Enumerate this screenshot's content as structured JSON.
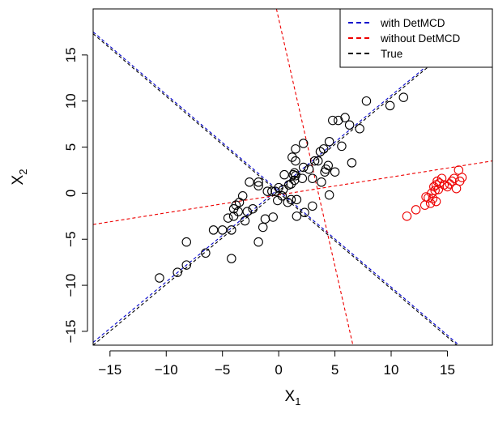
{
  "chart_data": {
    "type": "scatter",
    "title": "",
    "xlabel": {
      "base": "X",
      "sub": "1"
    },
    "ylabel": {
      "base": "X",
      "sub": "2"
    },
    "xlim": [
      -16.5,
      19
    ],
    "ylim": [
      -16.5,
      20
    ],
    "xticks": [
      -15,
      -10,
      -5,
      0,
      5,
      10,
      15
    ],
    "yticks": [
      -15,
      -10,
      -5,
      0,
      5,
      10,
      15
    ],
    "xtick_labels": [
      "−15",
      "−10",
      "−5",
      "0",
      "5",
      "10",
      "15"
    ],
    "ytick_labels": [
      "−15",
      "−10",
      "−5",
      "0",
      "5",
      "10",
      "15"
    ],
    "grid": false,
    "legend_position": "top-right",
    "legend": [
      {
        "label": "with DetMCD",
        "color": "#0000cc",
        "style": "dashed"
      },
      {
        "label": "without DetMCD",
        "color": "#ee0000",
        "style": "dashed"
      },
      {
        "label": "True",
        "color": "#000000",
        "style": "dashed"
      }
    ],
    "series": [
      {
        "marker": "open-circle",
        "color": "#000000",
        "points": [
          [
            -10.6,
            -9.2
          ],
          [
            -9.0,
            -8.6
          ],
          [
            -8.2,
            -7.8
          ],
          [
            -8.2,
            -5.3
          ],
          [
            -6.5,
            -6.5
          ],
          [
            -5.8,
            -4.0
          ],
          [
            -5.0,
            -4.0
          ],
          [
            -4.5,
            -2.7
          ],
          [
            -4.2,
            -4.0
          ],
          [
            -4.2,
            -7.1
          ],
          [
            -4.0,
            -1.7
          ],
          [
            -4.0,
            -2.5
          ],
          [
            -3.8,
            -1.3
          ],
          [
            -3.6,
            -2.0
          ],
          [
            -3.5,
            -1.0
          ],
          [
            -3.2,
            -0.3
          ],
          [
            -3.0,
            -3.0
          ],
          [
            -2.8,
            -2.0
          ],
          [
            -2.6,
            1.2
          ],
          [
            -2.3,
            -1.7
          ],
          [
            -1.8,
            1.2
          ],
          [
            -1.8,
            0.8
          ],
          [
            -1.8,
            -5.3
          ],
          [
            -1.4,
            -3.7
          ],
          [
            -1.2,
            -2.8
          ],
          [
            -1.0,
            0.2
          ],
          [
            -0.6,
            0.2
          ],
          [
            -0.5,
            -2.6
          ],
          [
            -0.3,
            0.2
          ],
          [
            -0.1,
            -0.8
          ],
          [
            0.3,
            -0.3
          ],
          [
            0.0,
            0.6
          ],
          [
            0.4,
            0.4
          ],
          [
            0.5,
            2.0
          ],
          [
            0.8,
            -1.0
          ],
          [
            0.9,
            0.9
          ],
          [
            1.1,
            1.0
          ],
          [
            1.1,
            -0.7
          ],
          [
            1.2,
            3.9
          ],
          [
            1.3,
            2.0
          ],
          [
            1.4,
            1.4
          ],
          [
            1.4,
            2.2
          ],
          [
            1.5,
            3.5
          ],
          [
            1.5,
            4.8
          ],
          [
            1.5,
            1.9
          ],
          [
            1.6,
            -0.7
          ],
          [
            1.6,
            -2.5
          ],
          [
            2.1,
            1.6
          ],
          [
            2.2,
            2.8
          ],
          [
            2.2,
            5.4
          ],
          [
            2.3,
            -2.1
          ],
          [
            2.7,
            2.6
          ],
          [
            3.0,
            1.6
          ],
          [
            3.0,
            -1.4
          ],
          [
            3.2,
            3.5
          ],
          [
            3.5,
            3.5
          ],
          [
            3.7,
            4.5
          ],
          [
            3.8,
            1.2
          ],
          [
            4.0,
            4.8
          ],
          [
            4.1,
            2.3
          ],
          [
            4.2,
            2.6
          ],
          [
            4.4,
            3.0
          ],
          [
            4.5,
            -0.2
          ],
          [
            4.5,
            5.6
          ],
          [
            4.8,
            7.9
          ],
          [
            5.0,
            2.3
          ],
          [
            5.3,
            7.9
          ],
          [
            5.6,
            5.1
          ],
          [
            5.9,
            8.2
          ],
          [
            6.3,
            7.4
          ],
          [
            6.5,
            3.3
          ],
          [
            7.2,
            7.0
          ],
          [
            7.8,
            10.0
          ],
          [
            9.9,
            9.5
          ],
          [
            11.1,
            10.4
          ]
        ]
      },
      {
        "marker": "open-circle",
        "color": "#ee0000",
        "points": [
          [
            11.4,
            -2.5
          ],
          [
            12.2,
            -1.8
          ],
          [
            13.0,
            -1.3
          ],
          [
            13.1,
            -0.4
          ],
          [
            13.3,
            -0.5
          ],
          [
            13.5,
            -1.1
          ],
          [
            13.6,
            0.0
          ],
          [
            13.7,
            -0.6
          ],
          [
            13.8,
            0.7
          ],
          [
            13.9,
            0.3
          ],
          [
            14.0,
            0.9
          ],
          [
            14.1,
            1.3
          ],
          [
            14.2,
            0.4
          ],
          [
            14.3,
            1.1
          ],
          [
            14.5,
            1.6
          ],
          [
            14.7,
            0.9
          ],
          [
            15.0,
            0.7
          ],
          [
            15.4,
            1.3
          ],
          [
            15.6,
            1.6
          ],
          [
            15.8,
            0.5
          ],
          [
            16.0,
            2.5
          ],
          [
            16.1,
            1.3
          ],
          [
            16.3,
            1.7
          ],
          [
            14.0,
            -0.9
          ],
          [
            15.2,
            1.0
          ]
        ]
      }
    ],
    "lines": [
      {
        "name": "with DetMCD",
        "color": "#0000cc",
        "from": [
          -16.5,
          -16.2
        ],
        "to": [
          19,
          19.7
        ]
      },
      {
        "name": "with DetMCD",
        "color": "#0000cc",
        "from": [
          -16.5,
          17.5
        ],
        "to": [
          19,
          -19.6
        ]
      },
      {
        "name": "True",
        "color": "#000000",
        "from": [
          -16.5,
          -16.5
        ],
        "to": [
          19,
          19.5
        ]
      },
      {
        "name": "True",
        "color": "#000000",
        "from": [
          -16.5,
          17.3
        ],
        "to": [
          19,
          -19.8
        ]
      },
      {
        "name": "without DetMCD",
        "color": "#ee0000",
        "from": [
          -16.5,
          -3.4
        ],
        "to": [
          19,
          3.5
        ]
      },
      {
        "name": "without DetMCD",
        "color": "#ee0000",
        "from": [
          -0.2,
          20
        ],
        "to": [
          6.6,
          -16.5
        ]
      }
    ]
  }
}
